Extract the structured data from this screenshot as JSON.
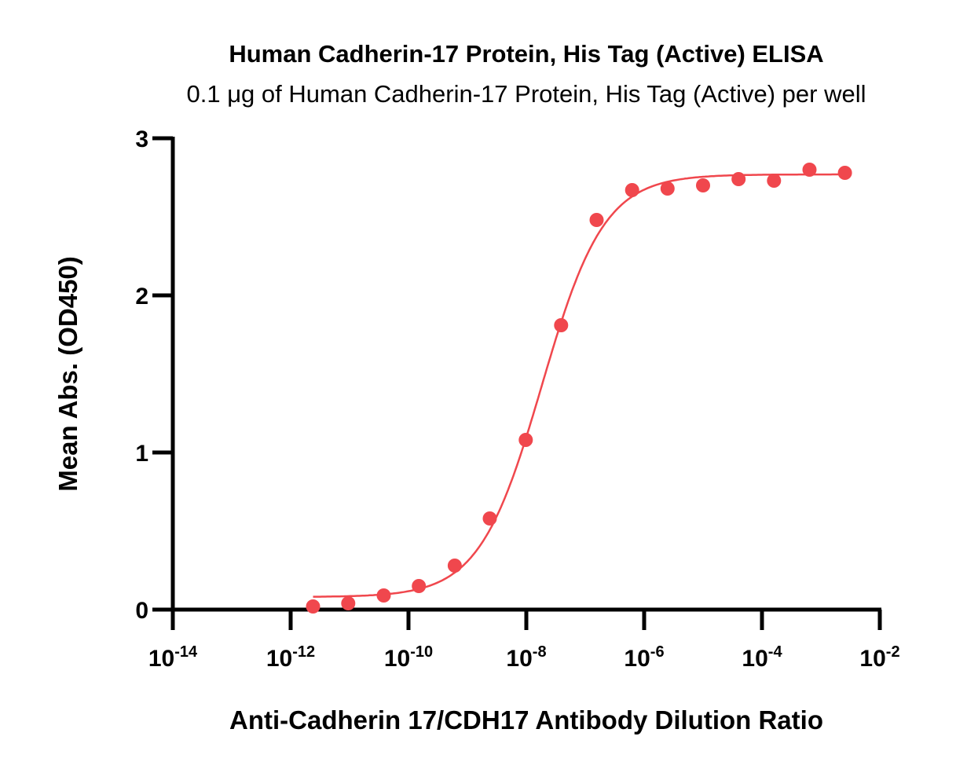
{
  "chart_data": {
    "type": "scatter",
    "title": "Human Cadherin-17 Protein, His Tag (Active) ELISA",
    "subtitle": "0.1 μg of Human Cadherin-17 Protein, His Tag (Active) per well",
    "xlabel": "Anti-Cadherin 17/CDH17 Antibody Dilution Ratio",
    "ylabel": "Mean Abs. (OD450)",
    "x_scale": "log",
    "xlim": [
      1e-14,
      0.01
    ],
    "ylim": [
      0,
      3
    ],
    "x_ticks": [
      {
        "base": "10",
        "exp": "-14",
        "value": 1e-14
      },
      {
        "base": "10",
        "exp": "-12",
        "value": 1e-12
      },
      {
        "base": "10",
        "exp": "-10",
        "value": 1e-10
      },
      {
        "base": "10",
        "exp": "-8",
        "value": 1e-08
      },
      {
        "base": "10",
        "exp": "-6",
        "value": 1e-06
      },
      {
        "base": "10",
        "exp": "-4",
        "value": 0.0001
      },
      {
        "base": "10",
        "exp": "-2",
        "value": 0.01
      }
    ],
    "y_ticks": [
      "0",
      "1",
      "2",
      "3"
    ],
    "grid": false,
    "color": "#f0474d",
    "series": [
      {
        "x": [
          2.4e-12,
          9.5e-12,
          3.8e-11,
          1.5e-10,
          6.1e-10,
          2.4e-09,
          9.8e-09,
          3.9e-08,
          1.56e-07,
          6.25e-07,
          2.5e-06,
          1e-05,
          4e-05,
          0.00016,
          0.00064,
          0.00256
        ],
        "y": [
          0.02,
          0.04,
          0.09,
          0.15,
          0.28,
          0.58,
          1.08,
          1.81,
          2.48,
          2.67,
          2.68,
          2.7,
          2.74,
          2.73,
          2.8,
          2.78
        ]
      }
    ]
  }
}
